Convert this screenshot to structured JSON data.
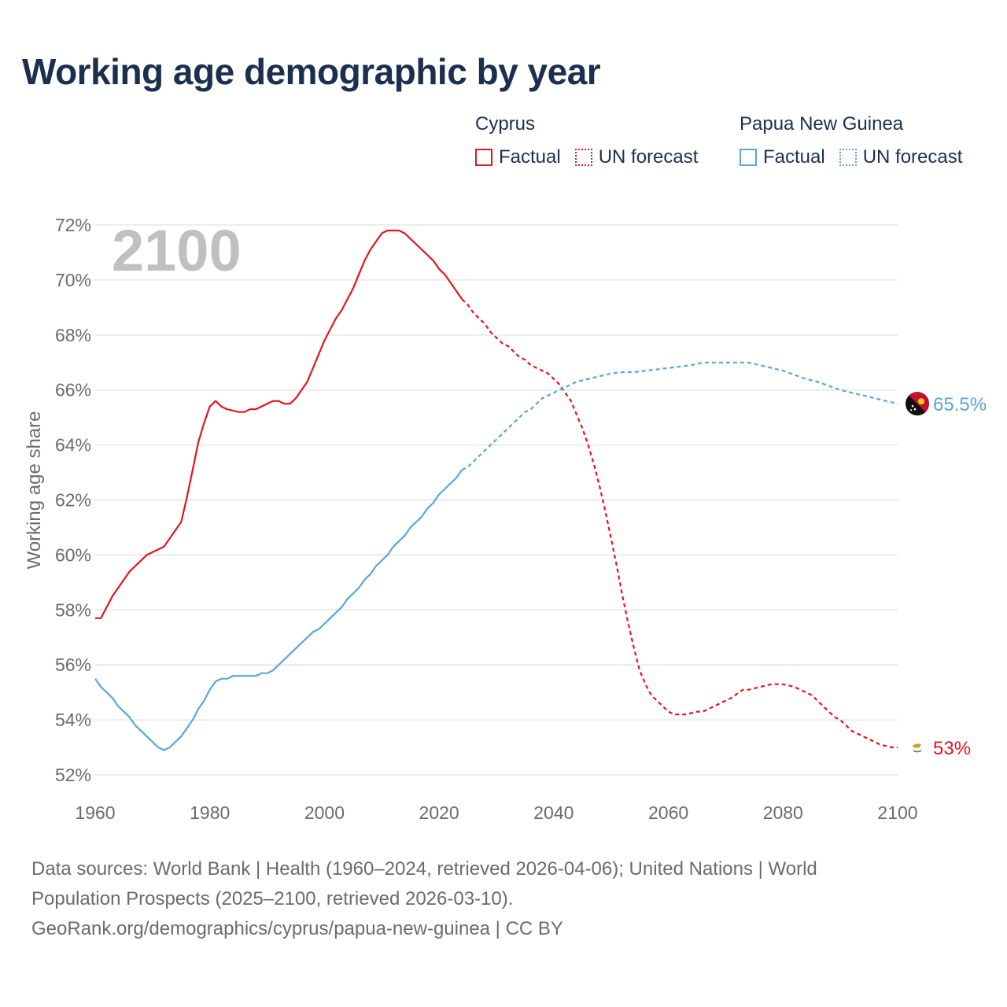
{
  "title": "Working age demographic by year",
  "legend": {
    "groups": [
      {
        "name": "Cyprus",
        "factual": "Factual",
        "forecast": "UN forecast",
        "color": "#e8141c"
      },
      {
        "name": "Papua New Guinea",
        "factual": "Factual",
        "forecast": "UN forecast",
        "color": "#5aa5e0"
      }
    ]
  },
  "source": {
    "line1": "Data sources: World Bank | Health (1960–2024, retrieved 2026-04-06); United Nations | World",
    "line2": "Population Prospects (2025–2100, retrieved 2026-03-10).",
    "line3": "GeoRank.org/demographics/cyprus/papua-new-guinea | CC BY"
  },
  "chart_data": {
    "type": "line",
    "title": "Working age demographic by year",
    "year_label": "2100",
    "xlabel": "",
    "ylabel": "Working age share",
    "xlim": [
      1960,
      2100
    ],
    "ylim": [
      52,
      72
    ],
    "xticks": [
      1960,
      1980,
      2000,
      2020,
      2040,
      2060,
      2080,
      2100
    ],
    "yticks": [
      52,
      54,
      56,
      58,
      60,
      62,
      64,
      66,
      68,
      70,
      72
    ],
    "ytick_suffix": "%",
    "grid": true,
    "forecast_start": 2024,
    "series": [
      {
        "name": "Cyprus",
        "color": "#e8141c",
        "end_label": "53%",
        "flag": "cyprus-flag",
        "x": [
          1960,
          1961,
          1963,
          1966,
          1969,
          1972,
          1975,
          1976,
          1977,
          1978,
          1979,
          1980,
          1981,
          1982,
          1983,
          1985,
          1986,
          1987,
          1988,
          1989,
          1990,
          1991,
          1992,
          1993,
          1994,
          1995,
          1996,
          1997,
          1998,
          1999,
          2000,
          2002,
          2003,
          2004,
          2005,
          2006,
          2007,
          2008,
          2009,
          2010,
          2011,
          2012,
          2013,
          2014,
          2016,
          2018,
          2019,
          2020,
          2021,
          2022,
          2023,
          2024,
          2025,
          2026,
          2027,
          2028,
          2029,
          2030,
          2031,
          2032,
          2033,
          2034,
          2035,
          2036,
          2037,
          2038,
          2039,
          2040,
          2041,
          2042,
          2043,
          2044,
          2045,
          2046,
          2047,
          2048,
          2049,
          2050,
          2051,
          2052,
          2053,
          2054,
          2055,
          2056,
          2057,
          2058,
          2059,
          2060,
          2061,
          2062,
          2063,
          2064,
          2065,
          2066,
          2067,
          2068,
          2069,
          2070,
          2071,
          2072,
          2073,
          2074,
          2075,
          2076,
          2077,
          2078,
          2079,
          2080,
          2081,
          2082,
          2083,
          2084,
          2085,
          2086,
          2087,
          2088,
          2089,
          2090,
          2091,
          2092,
          2093,
          2094,
          2095,
          2096,
          2097,
          2098,
          2099,
          2100
        ],
        "y": [
          57.7,
          57.7,
          58.5,
          59.4,
          60.0,
          60.3,
          61.2,
          62.1,
          63.1,
          64.1,
          64.8,
          65.4,
          65.6,
          65.4,
          65.3,
          65.2,
          65.2,
          65.3,
          65.3,
          65.4,
          65.5,
          65.6,
          65.6,
          65.5,
          65.5,
          65.7,
          66.0,
          66.3,
          66.8,
          67.3,
          67.8,
          68.6,
          68.9,
          69.3,
          69.7,
          70.2,
          70.7,
          71.1,
          71.4,
          71.7,
          71.8,
          71.8,
          71.8,
          71.7,
          71.3,
          70.9,
          70.7,
          70.4,
          70.2,
          69.9,
          69.6,
          69.3,
          69.1,
          68.8,
          68.6,
          68.4,
          68.1,
          67.9,
          67.7,
          67.6,
          67.4,
          67.2,
          67.1,
          66.9,
          66.8,
          66.7,
          66.6,
          66.4,
          66.2,
          65.9,
          65.6,
          65.1,
          64.6,
          64.0,
          63.3,
          62.5,
          61.6,
          60.6,
          59.6,
          58.5,
          57.5,
          56.6,
          55.8,
          55.3,
          54.9,
          54.7,
          54.5,
          54.3,
          54.2,
          54.2,
          54.2,
          54.25,
          54.3,
          54.3,
          54.4,
          54.5,
          54.6,
          54.7,
          54.8,
          54.95,
          55.1,
          55.1,
          55.15,
          55.2,
          55.25,
          55.3,
          55.3,
          55.3,
          55.25,
          55.2,
          55.1,
          55.0,
          54.9,
          54.7,
          54.5,
          54.3,
          54.1,
          54.0,
          53.8,
          53.6,
          53.5,
          53.4,
          53.3,
          53.2,
          53.1,
          53.05,
          53.0,
          53.0
        ]
      },
      {
        "name": "Papua New Guinea",
        "color": "#5aa5e0",
        "end_label": "65.5%",
        "flag": "papua-new-guinea-flag",
        "x": [
          1960,
          1961,
          1962,
          1963,
          1964,
          1965,
          1966,
          1967,
          1968,
          1969,
          1970,
          1971,
          1972,
          1973,
          1974,
          1975,
          1976,
          1977,
          1978,
          1979,
          1980,
          1981,
          1982,
          1983,
          1984,
          1985,
          1986,
          1987,
          1988,
          1989,
          1990,
          1991,
          1992,
          1993,
          1994,
          1995,
          1996,
          1997,
          1998,
          1999,
          2000,
          2001,
          2002,
          2003,
          2004,
          2005,
          2006,
          2007,
          2008,
          2009,
          2010,
          2011,
          2012,
          2013,
          2014,
          2015,
          2016,
          2017,
          2018,
          2019,
          2020,
          2021,
          2022,
          2023,
          2024,
          2025,
          2026,
          2027,
          2028,
          2029,
          2030,
          2031,
          2032,
          2033,
          2034,
          2035,
          2036,
          2037,
          2038,
          2039,
          2040,
          2041,
          2042,
          2043,
          2044,
          2045,
          2046,
          2047,
          2048,
          2049,
          2050,
          2052,
          2054,
          2056,
          2058,
          2060,
          2062,
          2064,
          2066,
          2068,
          2070,
          2072,
          2074,
          2076,
          2078,
          2080,
          2082,
          2084,
          2086,
          2088,
          2090,
          2092,
          2094,
          2096,
          2098,
          2100
        ],
        "y": [
          55.5,
          55.2,
          55.0,
          54.8,
          54.5,
          54.3,
          54.1,
          53.8,
          53.6,
          53.4,
          53.2,
          53.0,
          52.9,
          53.0,
          53.2,
          53.4,
          53.7,
          54.0,
          54.4,
          54.7,
          55.1,
          55.4,
          55.5,
          55.5,
          55.6,
          55.6,
          55.6,
          55.6,
          55.6,
          55.7,
          55.7,
          55.8,
          56.0,
          56.2,
          56.4,
          56.6,
          56.8,
          57.0,
          57.2,
          57.3,
          57.5,
          57.7,
          57.9,
          58.1,
          58.4,
          58.6,
          58.8,
          59.1,
          59.3,
          59.6,
          59.8,
          60.0,
          60.3,
          60.5,
          60.7,
          61.0,
          61.2,
          61.4,
          61.7,
          61.9,
          62.2,
          62.4,
          62.6,
          62.8,
          63.1,
          63.2,
          63.4,
          63.6,
          63.8,
          64.0,
          64.2,
          64.4,
          64.6,
          64.8,
          65.0,
          65.2,
          65.3,
          65.5,
          65.7,
          65.8,
          65.9,
          66.0,
          66.1,
          66.2,
          66.3,
          66.35,
          66.4,
          66.45,
          66.5,
          66.55,
          66.6,
          66.65,
          66.65,
          66.7,
          66.75,
          66.8,
          66.85,
          66.9,
          67.0,
          67.0,
          67.0,
          67.0,
          67.0,
          66.9,
          66.8,
          66.7,
          66.55,
          66.4,
          66.3,
          66.15,
          66.0,
          65.9,
          65.8,
          65.7,
          65.6,
          65.5
        ]
      }
    ]
  }
}
